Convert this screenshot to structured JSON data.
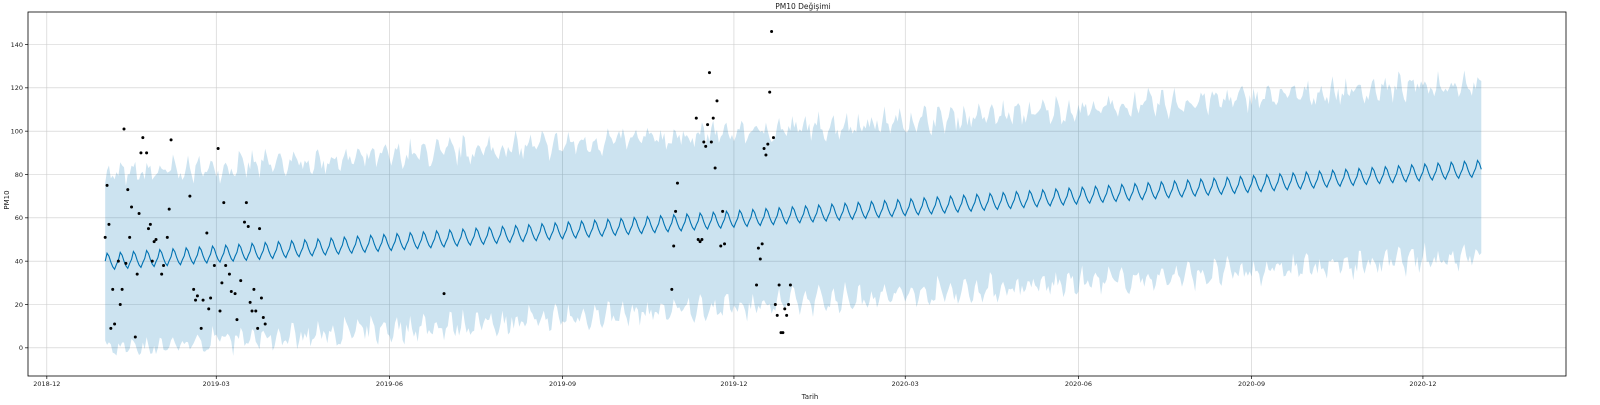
{
  "chart_data": {
    "type": "line",
    "title": "PM10 Değişimi",
    "xlabel": "Tarih",
    "ylabel": "PM10",
    "xlim": [
      "2018-11-21",
      "2021-02-15"
    ],
    "ylim": [
      -13,
      155
    ],
    "grid": true,
    "x_ticks": [
      "2018-12-01",
      "2019-03-01",
      "2019-06-01",
      "2019-09-01",
      "2019-12-01",
      "2020-03-01",
      "2020-06-01",
      "2020-09-01",
      "2020-12-01"
    ],
    "x_tick_labels": [
      "2018-12",
      "2019-03",
      "2019-06",
      "2019-09",
      "2019-12",
      "2020-03",
      "2020-06",
      "2020-09",
      "2020-12"
    ],
    "y_ticks": [
      0,
      20,
      40,
      60,
      80,
      100,
      120,
      140
    ],
    "y_tick_labels": [
      "0",
      "20",
      "40",
      "60",
      "80",
      "100",
      "120",
      "140"
    ],
    "forecast": {
      "start": "2019-01-01",
      "end": "2021-01-01",
      "trend_start": 40,
      "trend_end": 83,
      "weekly_amplitude": 4,
      "interval_half_width": 40
    },
    "colors": {
      "forecast_line": "#0072B2",
      "interval_fill": "#0072B2",
      "observed_points": "#000000",
      "grid": "#cccccc"
    },
    "observed": [
      {
        "x": "2019-01-01",
        "y": 51
      },
      {
        "x": "2019-01-02",
        "y": 75
      },
      {
        "x": "2019-01-03",
        "y": 57
      },
      {
        "x": "2019-01-04",
        "y": 9
      },
      {
        "x": "2019-01-05",
        "y": 27
      },
      {
        "x": "2019-01-06",
        "y": 11
      },
      {
        "x": "2019-01-08",
        "y": 40
      },
      {
        "x": "2019-01-09",
        "y": 20
      },
      {
        "x": "2019-01-10",
        "y": 27
      },
      {
        "x": "2019-01-11",
        "y": 101
      },
      {
        "x": "2019-01-12",
        "y": 39
      },
      {
        "x": "2019-01-13",
        "y": 73
      },
      {
        "x": "2019-01-14",
        "y": 51
      },
      {
        "x": "2019-01-15",
        "y": 65
      },
      {
        "x": "2019-01-17",
        "y": 5
      },
      {
        "x": "2019-01-18",
        "y": 34
      },
      {
        "x": "2019-01-19",
        "y": 62
      },
      {
        "x": "2019-01-20",
        "y": 90
      },
      {
        "x": "2019-01-21",
        "y": 97
      },
      {
        "x": "2019-01-23",
        "y": 90
      },
      {
        "x": "2019-01-24",
        "y": 55
      },
      {
        "x": "2019-01-25",
        "y": 57
      },
      {
        "x": "2019-01-26",
        "y": 40
      },
      {
        "x": "2019-01-27",
        "y": 49
      },
      {
        "x": "2019-01-28",
        "y": 50
      },
      {
        "x": "2019-01-31",
        "y": 34
      },
      {
        "x": "2019-02-01",
        "y": 38
      },
      {
        "x": "2019-02-03",
        "y": 51
      },
      {
        "x": "2019-02-04",
        "y": 64
      },
      {
        "x": "2019-02-05",
        "y": 96
      },
      {
        "x": "2019-02-15",
        "y": 70
      },
      {
        "x": "2019-02-17",
        "y": 27
      },
      {
        "x": "2019-02-18",
        "y": 22
      },
      {
        "x": "2019-02-19",
        "y": 24
      },
      {
        "x": "2019-02-21",
        "y": 9
      },
      {
        "x": "2019-02-22",
        "y": 22
      },
      {
        "x": "2019-02-24",
        "y": 53
      },
      {
        "x": "2019-02-25",
        "y": 18
      },
      {
        "x": "2019-02-26",
        "y": 23
      },
      {
        "x": "2019-02-28",
        "y": 38
      },
      {
        "x": "2019-03-02",
        "y": 92
      },
      {
        "x": "2019-03-03",
        "y": 17
      },
      {
        "x": "2019-03-04",
        "y": 30
      },
      {
        "x": "2019-03-05",
        "y": 67
      },
      {
        "x": "2019-03-06",
        "y": 38
      },
      {
        "x": "2019-03-08",
        "y": 34
      },
      {
        "x": "2019-03-09",
        "y": 26
      },
      {
        "x": "2019-03-11",
        "y": 25
      },
      {
        "x": "2019-03-12",
        "y": 13
      },
      {
        "x": "2019-03-14",
        "y": 31
      },
      {
        "x": "2019-03-16",
        "y": 58
      },
      {
        "x": "2019-03-17",
        "y": 67
      },
      {
        "x": "2019-03-18",
        "y": 56
      },
      {
        "x": "2019-03-19",
        "y": 21
      },
      {
        "x": "2019-03-20",
        "y": 17
      },
      {
        "x": "2019-03-21",
        "y": 27
      },
      {
        "x": "2019-03-22",
        "y": 17
      },
      {
        "x": "2019-03-23",
        "y": 9
      },
      {
        "x": "2019-03-24",
        "y": 55
      },
      {
        "x": "2019-03-25",
        "y": 23
      },
      {
        "x": "2019-03-26",
        "y": 14
      },
      {
        "x": "2019-03-27",
        "y": 11
      },
      {
        "x": "2019-06-30",
        "y": 25
      },
      {
        "x": "2019-10-29",
        "y": 27
      },
      {
        "x": "2019-10-30",
        "y": 47
      },
      {
        "x": "2019-10-31",
        "y": 63
      },
      {
        "x": "2019-11-01",
        "y": 76
      },
      {
        "x": "2019-11-11",
        "y": 106
      },
      {
        "x": "2019-11-12",
        "y": 50
      },
      {
        "x": "2019-11-13",
        "y": 49
      },
      {
        "x": "2019-11-14",
        "y": 50
      },
      {
        "x": "2019-11-15",
        "y": 95
      },
      {
        "x": "2019-11-16",
        "y": 93
      },
      {
        "x": "2019-11-17",
        "y": 103
      },
      {
        "x": "2019-11-18",
        "y": 127
      },
      {
        "x": "2019-11-19",
        "y": 95
      },
      {
        "x": "2019-11-20",
        "y": 106
      },
      {
        "x": "2019-11-21",
        "y": 83
      },
      {
        "x": "2019-11-22",
        "y": 114
      },
      {
        "x": "2019-11-24",
        "y": 47
      },
      {
        "x": "2019-11-25",
        "y": 63
      },
      {
        "x": "2019-11-26",
        "y": 48
      },
      {
        "x": "2019-12-13",
        "y": 29
      },
      {
        "x": "2019-12-14",
        "y": 46
      },
      {
        "x": "2019-12-15",
        "y": 41
      },
      {
        "x": "2019-12-16",
        "y": 48
      },
      {
        "x": "2019-12-17",
        "y": 92
      },
      {
        "x": "2019-12-18",
        "y": 89
      },
      {
        "x": "2019-12-19",
        "y": 94
      },
      {
        "x": "2019-12-20",
        "y": 118
      },
      {
        "x": "2019-12-21",
        "y": 146
      },
      {
        "x": "2019-12-22",
        "y": 97
      },
      {
        "x": "2019-12-23",
        "y": 20
      },
      {
        "x": "2019-12-24",
        "y": 15
      },
      {
        "x": "2019-12-25",
        "y": 29
      },
      {
        "x": "2019-12-26",
        "y": 7
      },
      {
        "x": "2019-12-27",
        "y": 7
      },
      {
        "x": "2019-12-28",
        "y": 18
      },
      {
        "x": "2019-12-29",
        "y": 15
      },
      {
        "x": "2019-12-30",
        "y": 20
      },
      {
        "x": "2019-12-31",
        "y": 29
      }
    ]
  }
}
